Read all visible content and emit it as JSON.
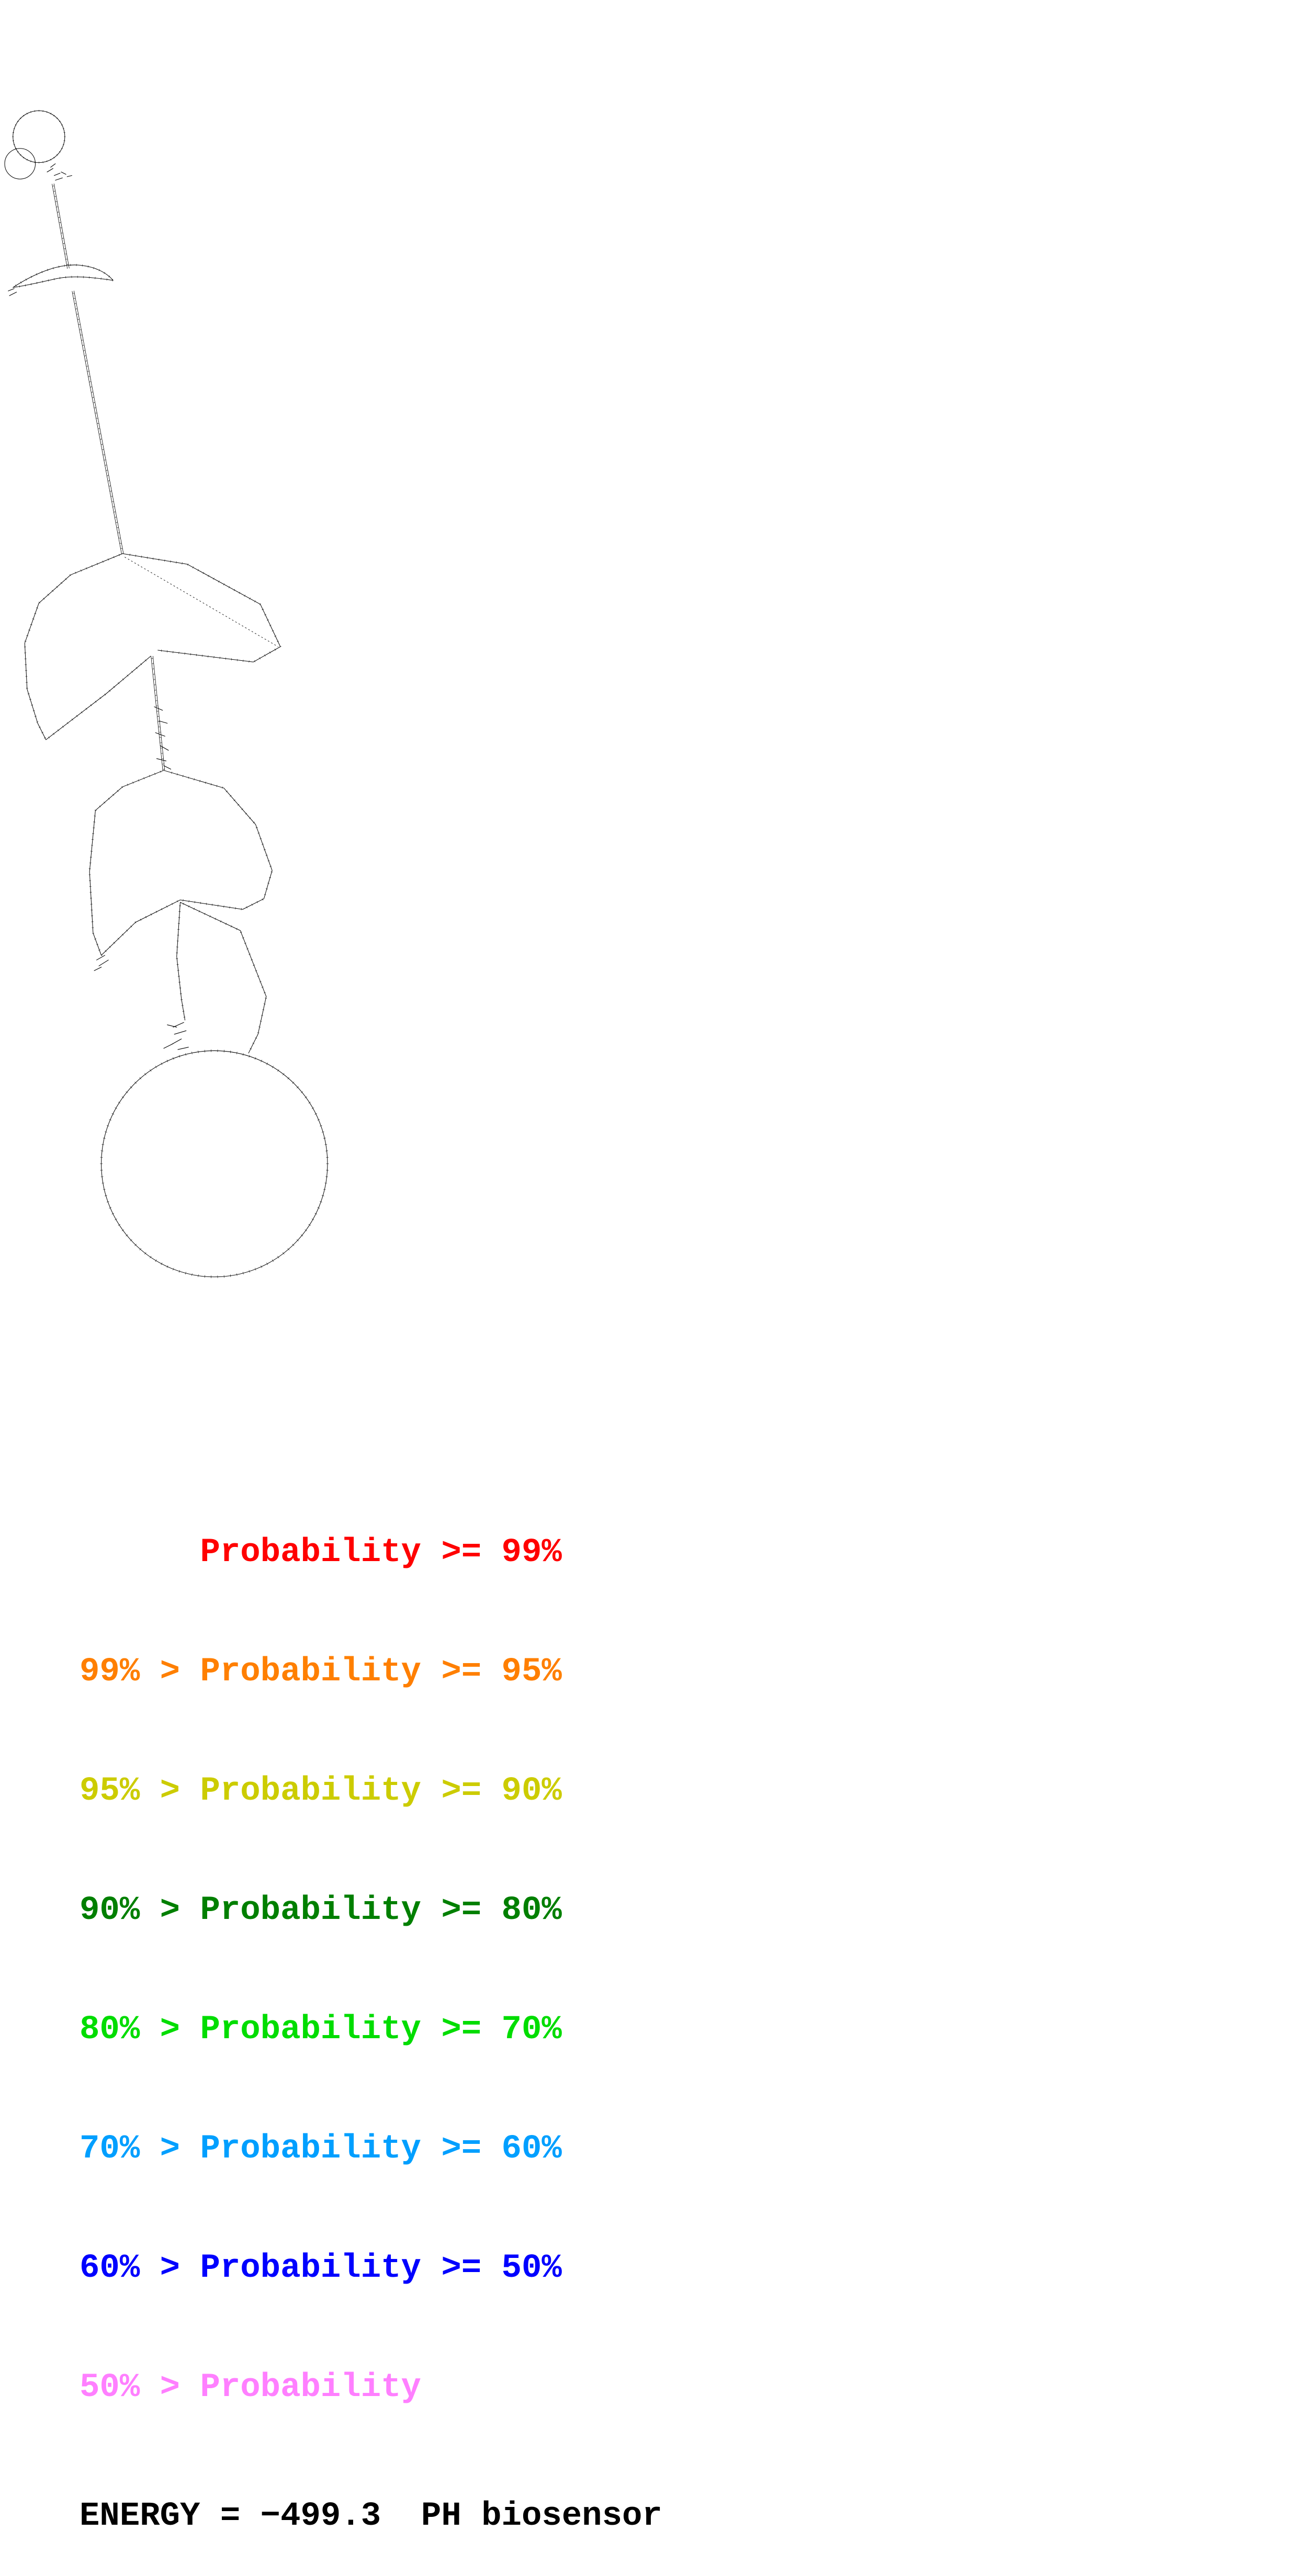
{
  "legend": {
    "items": [
      {
        "label": "      Probability >= 99%",
        "color": "#ff0000"
      },
      {
        "label": "99% > Probability >= 95%",
        "color": "#ff7f00"
      },
      {
        "label": "95% > Probability >= 90%",
        "color": "#cccc00"
      },
      {
        "label": "90% > Probability >= 80%",
        "color": "#007f00"
      },
      {
        "label": "80% > Probability >= 70%",
        "color": "#00dd00"
      },
      {
        "label": "70% > Probability >= 60%",
        "color": "#009fff"
      },
      {
        "label": "60% > Probability >= 50%",
        "color": "#0000ff"
      },
      {
        "label": "50% > Probability",
        "color": "#ff7fff"
      }
    ]
  },
  "energy": {
    "label": "ENERGY = −499.3  PH biosensor"
  }
}
